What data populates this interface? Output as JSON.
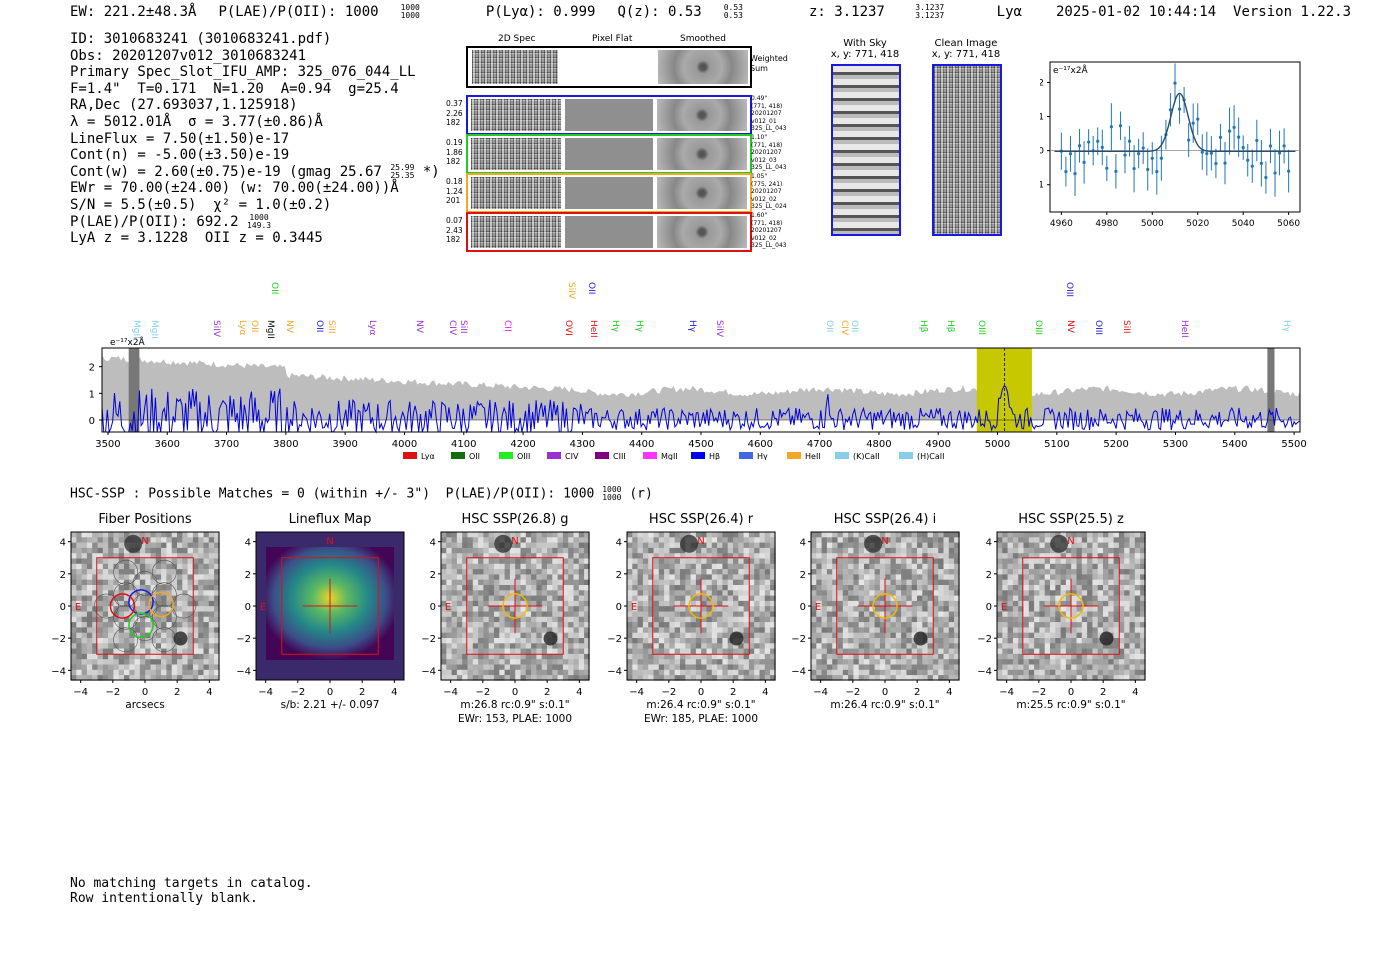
{
  "header": {
    "ew": "EW: 221.2±48.3Å",
    "plae_label": "P(LAE)/P(OII): 1000",
    "plae_hi": "1000",
    "plae_lo": "1000",
    "plya": "P(Lyα): 0.999",
    "qz_label": "Q(z): 0.53",
    "qz_hi": "0.53",
    "qz_lo": "0.53",
    "z_label": "z: 3.1237",
    "z_hi": "3.1237",
    "z_lo": "3.1237",
    "z_line": "Lyα",
    "timestamp": "2025-01-02 10:44:14",
    "version": "Version 1.22.3"
  },
  "info": {
    "id": "ID: 3010683241 (3010683241.pdf)",
    "obs": "Obs: 20201207v012_3010683241",
    "primary": "Primary Spec_Slot_IFU_AMP: 325_076_044_LL",
    "fwhm": "F=1.4\"  T=0.171  N=1.20  A=0.94  g=25.4",
    "radec": "RA,Dec (27.693037,1.125918)",
    "lambda": "λ = 5012.01Å  σ = 3.77(±0.86)Å",
    "lineflux": "LineFlux = 7.50(±1.50)e-17",
    "contn": "Cont(n) = -5.00(±3.50)e-19",
    "contw": "Cont(w) = 2.60(±0.75)e-19 (gmag 25.67",
    "contw_hi": "25.99",
    "contw_lo": "25.35",
    "contw_end": "*)",
    "ewr": "EWr = 70.00(±24.00) (w: 70.00(±24.00))Å",
    "sn": "S/N = 5.5(±0.5)  χ² = 1.0(±0.2)",
    "plae": "P(LAE)/P(OII): 692.2",
    "plae_hi": "1000",
    "plae_lo": "149.3",
    "redshift": "LyA z = 3.1228  OII z = 0.3445"
  },
  "cutouts": {
    "col_labels": [
      "2D Spec",
      "Pixel Flat",
      "Smoothed"
    ],
    "weighted": "Weighted Sum",
    "rows": [
      {
        "left": [
          "0.37",
          "2.26",
          "182"
        ],
        "right": [
          "0.49\"",
          "(771, 418)",
          "20201207",
          "v012_01",
          "325_LL_043"
        ],
        "color": "#1a1adc"
      },
      {
        "left": [
          "0.19",
          "1.86",
          "182"
        ],
        "right": [
          "1.10\"",
          "(771, 418)",
          "20201207",
          "v012_03",
          "325_LL_043"
        ],
        "color": "#22cc22"
      },
      {
        "left": [
          "0.18",
          "1.24",
          "201"
        ],
        "right": [
          "1.05\"",
          "(775, 241)",
          "20201207",
          "v012_02",
          "325_LL_024"
        ],
        "color": "#f5a623"
      },
      {
        "left": [
          "0.07",
          "2.43",
          "182"
        ],
        "right": [
          "1.60\"",
          "(771, 418)",
          "20201207",
          "v012_02",
          "325_LL_043"
        ],
        "color": "#dd1111"
      }
    ]
  },
  "sky": {
    "with_sky_title": "With Sky",
    "with_sky_coords": "x, y: 771, 418",
    "clean_title": "Clean Image",
    "clean_coords": "x, y: 771, 418"
  },
  "fit_plot": {
    "unit": "e⁻¹⁷x2Å",
    "yticks": [
      "2",
      "1",
      "0",
      "−1"
    ],
    "xticks": [
      "4960",
      "4980",
      "5000",
      "5020",
      "5040",
      "5060"
    ],
    "color": "#1f77b4"
  },
  "spectrum": {
    "unit": "e⁻¹⁷x2Å",
    "yticks": [
      "2",
      "1",
      "0"
    ],
    "xticks": [
      "3500",
      "3600",
      "3700",
      "3800",
      "3900",
      "4000",
      "4100",
      "4200",
      "4300",
      "4400",
      "4500",
      "4600",
      "4700",
      "4800",
      "4900",
      "5000",
      "5100",
      "5200",
      "5300",
      "5400",
      "5500"
    ],
    "line_labels": [
      {
        "t": "MgII",
        "c": "#87ceeb",
        "x": 130,
        "row": 1
      },
      {
        "t": "MgII",
        "c": "#87ceeb",
        "x": 148,
        "row": 1
      },
      {
        "t": "SiIV",
        "c": "#9b30d0",
        "x": 210,
        "row": 1
      },
      {
        "t": "Lyα",
        "c": "#f5a623",
        "x": 236,
        "row": 1
      },
      {
        "t": "OII",
        "c": "#f5a623",
        "x": 248,
        "row": 1
      },
      {
        "t": "MgII",
        "c": "#111111",
        "x": 264,
        "row": 1
      },
      {
        "t": "OII",
        "c": "#22cc22",
        "x": 268,
        "row": 0
      },
      {
        "t": "NV",
        "c": "#f5a623",
        "x": 283,
        "row": 1
      },
      {
        "t": "OII",
        "c": "#1a1adc",
        "x": 313,
        "row": 1
      },
      {
        "t": "SiII",
        "c": "#f5a623",
        "x": 325,
        "row": 1
      },
      {
        "t": "Lyα",
        "c": "#9b30d0",
        "x": 366,
        "row": 1
      },
      {
        "t": "NV",
        "c": "#9b30d0",
        "x": 413,
        "row": 1
      },
      {
        "t": "CIV",
        "c": "#9b30d0",
        "x": 446,
        "row": 1
      },
      {
        "t": "SiII",
        "c": "#9b30d0",
        "x": 457,
        "row": 1
      },
      {
        "t": "CII",
        "c": "#e020e0",
        "x": 501,
        "row": 1
      },
      {
        "t": "SiIV",
        "c": "#f5a623",
        "x": 565,
        "row": 0
      },
      {
        "t": "OII",
        "c": "#1a1adc",
        "x": 585,
        "row": 0
      },
      {
        "t": "OVI",
        "c": "#dd1111",
        "x": 562,
        "row": 1
      },
      {
        "t": "HeII",
        "c": "#dd1111",
        "x": 587,
        "row": 1
      },
      {
        "t": "Hγ",
        "c": "#22cc22",
        "x": 609,
        "row": 1
      },
      {
        "t": "Hγ",
        "c": "#22cc22",
        "x": 633,
        "row": 1
      },
      {
        "t": "Hγ",
        "c": "#1a1adc",
        "x": 686,
        "row": 1
      },
      {
        "t": "SiIV",
        "c": "#9b30d0",
        "x": 713,
        "row": 1
      },
      {
        "t": "OII",
        "c": "#87ceeb",
        "x": 823,
        "row": 1
      },
      {
        "t": "CIV",
        "c": "#f5a623",
        "x": 838,
        "row": 1
      },
      {
        "t": "OII",
        "c": "#87ceeb",
        "x": 848,
        "row": 1
      },
      {
        "t": "Hβ",
        "c": "#22cc22",
        "x": 917,
        "row": 1
      },
      {
        "t": "Hβ",
        "c": "#22cc22",
        "x": 944,
        "row": 1
      },
      {
        "t": "OIII",
        "c": "#22cc22",
        "x": 975,
        "row": 1
      },
      {
        "t": "OIII",
        "c": "#22cc22",
        "x": 1032,
        "row": 1
      },
      {
        "t": "NV",
        "c": "#dd1111",
        "x": 1064,
        "row": 1
      },
      {
        "t": "OIII",
        "c": "#1a1adc",
        "x": 1063,
        "row": 0
      },
      {
        "t": "OIII",
        "c": "#1a1adc",
        "x": 1092,
        "row": 1
      },
      {
        "t": "SiII",
        "c": "#dd1111",
        "x": 1120,
        "row": 1
      },
      {
        "t": "HeII",
        "c": "#9b30d0",
        "x": 1178,
        "row": 1
      },
      {
        "t": "Hγ",
        "c": "#87ceeb",
        "x": 1280,
        "row": 1
      }
    ],
    "legend": [
      {
        "name": "Lyα",
        "color": "#dd1111"
      },
      {
        "name": "OII",
        "color": "#107010"
      },
      {
        "name": "OIII",
        "color": "#22ee22"
      },
      {
        "name": "CIV",
        "color": "#9b30d0"
      },
      {
        "name": "CIII",
        "color": "#800080"
      },
      {
        "name": "MgII",
        "color": "#ff33ff"
      },
      {
        "name": "Hβ",
        "color": "#0000ee"
      },
      {
        "name": "Hγ",
        "color": "#4169e1"
      },
      {
        "name": "HeII",
        "color": "#f5a623"
      },
      {
        "name": "(K)CaII",
        "color": "#87ceeb"
      },
      {
        "name": "(H)CaII",
        "color": "#87ceeb"
      }
    ]
  },
  "hsc": {
    "header": "HSC-SSP : Possible Matches = 0 (within +/- 3\")  P(LAE)/P(OII): 1000",
    "header_hi": "1000",
    "header_lo": "1000",
    "header_end": "(r)",
    "ticks": [
      "4",
      "2",
      "0",
      "−2",
      "−4"
    ],
    "xticks": [
      "−4",
      "−2",
      "0",
      "2",
      "4"
    ],
    "panels": [
      {
        "title": "Fiber Positions",
        "sub1": "arcsecs",
        "sub2": ""
      },
      {
        "title": "Lineflux Map",
        "sub1": "s/b: 2.21 +/- 0.097",
        "sub2": ""
      },
      {
        "title": "HSC SSP(26.8) g",
        "sub1": "m:26.8 rc:0.9\"  s:0.1\"",
        "sub2": "EWr: 153, PLAE: 1000"
      },
      {
        "title": "HSC SSP(26.4) r",
        "sub1": "m:26.4 rc:0.9\"  s:0.1\"",
        "sub2": "EWr: 185, PLAE: 1000"
      },
      {
        "title": "HSC SSP(26.4) i",
        "sub1": "m:26.4 rc:0.9\"  s:0.1\"",
        "sub2": ""
      },
      {
        "title": "HSC SSP(25.5) z",
        "sub1": "m:25.5 rc:0.9\"  s:0.1\"",
        "sub2": ""
      }
    ],
    "n_label": "N",
    "e_label": "E"
  },
  "footer": {
    "line1": "No matching targets in catalog.",
    "line2": "Row intentionally blank."
  }
}
